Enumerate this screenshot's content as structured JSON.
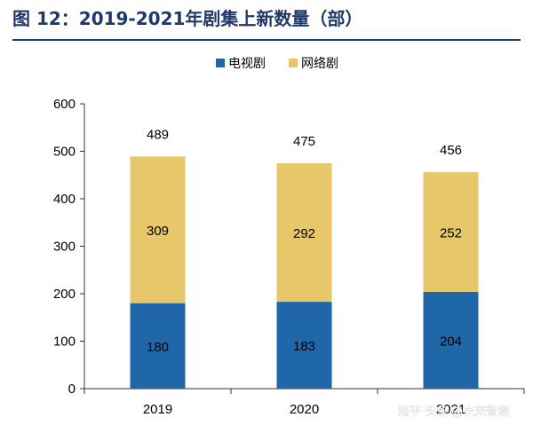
{
  "header": {
    "title": "图 12：2019-2021年剧集上新数量（部）"
  },
  "colors": {
    "tv": "#1f67a8",
    "web": "#e6c86a",
    "title": "#1f3a68"
  },
  "watermark": "知乎 头条 @未来智库",
  "chart_data": {
    "type": "bar",
    "stacked": true,
    "categories": [
      "2019",
      "2020",
      "2021"
    ],
    "series": [
      {
        "name": "电视剧",
        "values": [
          180,
          183,
          204
        ]
      },
      {
        "name": "网络剧",
        "values": [
          309,
          292,
          252
        ]
      }
    ],
    "totals": [
      489,
      475,
      456
    ],
    "ylim": [
      0,
      600
    ],
    "yticks": [
      "0",
      "100",
      "200",
      "300",
      "400",
      "500",
      "600"
    ],
    "legend_position": "top-center",
    "grid": false
  }
}
